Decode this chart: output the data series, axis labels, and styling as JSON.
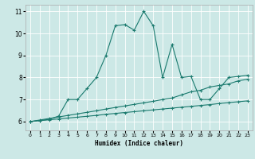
{
  "xlabel": "Humidex (Indice chaleur)",
  "xlim": [
    -0.5,
    23.5
  ],
  "ylim": [
    5.6,
    11.3
  ],
  "yticks": [
    6,
    7,
    8,
    9,
    10,
    11
  ],
  "xticks": [
    0,
    1,
    2,
    3,
    4,
    5,
    6,
    7,
    8,
    9,
    10,
    11,
    12,
    13,
    14,
    15,
    16,
    17,
    18,
    19,
    20,
    21,
    22,
    23
  ],
  "bg_color": "#cce8e6",
  "line_color": "#1a7a6e",
  "grid_color": "#ffffff",
  "series1_x": [
    0,
    1,
    2,
    3,
    4,
    5,
    6,
    7,
    8,
    9,
    10,
    11,
    12,
    13,
    14,
    15,
    16,
    17,
    18,
    19,
    20,
    21,
    22,
    23
  ],
  "series1_y": [
    6.0,
    6.05,
    6.1,
    6.25,
    7.0,
    7.0,
    7.5,
    8.0,
    9.0,
    10.35,
    10.4,
    10.15,
    11.0,
    10.35,
    8.0,
    9.5,
    8.0,
    8.05,
    7.0,
    7.0,
    7.5,
    8.0,
    8.05,
    8.1
  ],
  "series2_x": [
    0,
    1,
    2,
    3,
    4,
    5,
    6,
    7,
    8,
    9,
    10,
    11,
    12,
    13,
    14,
    15,
    16,
    17,
    18,
    19,
    20,
    21,
    22,
    23
  ],
  "series2_y": [
    6.0,
    6.07,
    6.14,
    6.21,
    6.28,
    6.35,
    6.42,
    6.49,
    6.57,
    6.64,
    6.71,
    6.78,
    6.85,
    6.92,
    7.0,
    7.07,
    7.21,
    7.35,
    7.42,
    7.57,
    7.64,
    7.71,
    7.85,
    7.92
  ],
  "series3_x": [
    0,
    1,
    2,
    3,
    4,
    5,
    6,
    7,
    8,
    9,
    10,
    11,
    12,
    13,
    14,
    15,
    16,
    17,
    18,
    19,
    20,
    21,
    22,
    23
  ],
  "series3_y": [
    6.0,
    6.04,
    6.08,
    6.12,
    6.16,
    6.2,
    6.24,
    6.28,
    6.33,
    6.37,
    6.41,
    6.45,
    6.49,
    6.53,
    6.57,
    6.61,
    6.65,
    6.69,
    6.73,
    6.77,
    6.82,
    6.86,
    6.9,
    6.94
  ]
}
